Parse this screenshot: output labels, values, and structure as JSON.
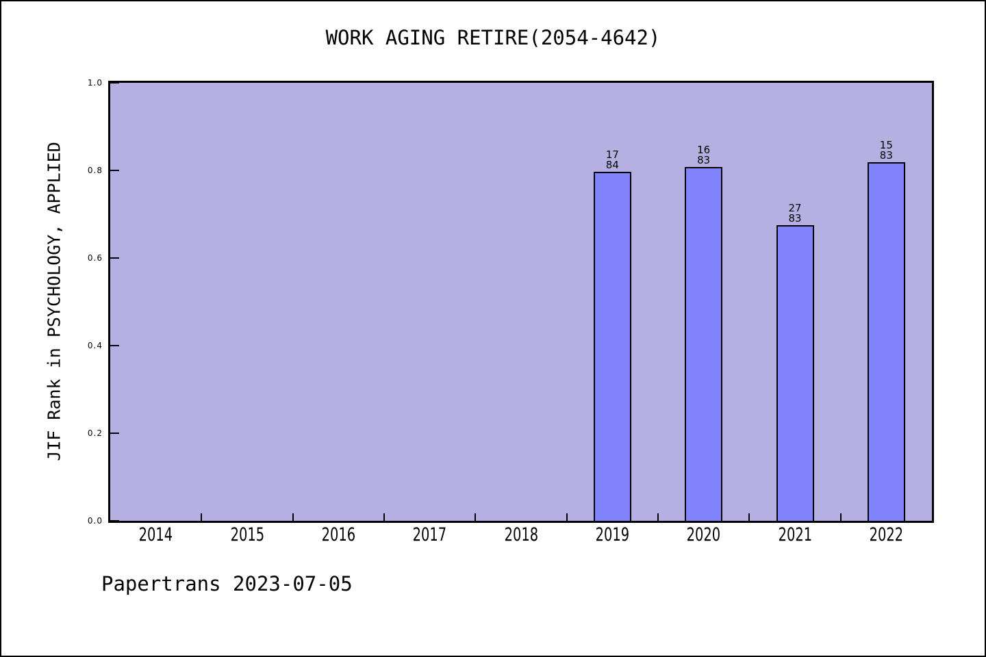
{
  "page": {
    "footer": "Papertrans 2023-07-05"
  },
  "chart_data": {
    "type": "bar",
    "title": "WORK AGING RETIRE(2054-4642)",
    "xlabel": "",
    "ylabel": "JIF Rank in PSYCHOLOGY, APPLIED",
    "categories": [
      "2014",
      "2015",
      "2016",
      "2017",
      "2018",
      "2019",
      "2020",
      "2021",
      "2022"
    ],
    "values": [
      null,
      null,
      null,
      null,
      null,
      0.7976,
      0.8072,
      0.6747,
      0.8193
    ],
    "bars": [
      {
        "year": "2019",
        "rank": "17",
        "total": "84",
        "value": 0.7976
      },
      {
        "year": "2020",
        "rank": "16",
        "total": "83",
        "value": 0.8072
      },
      {
        "year": "2021",
        "rank": "27",
        "total": "83",
        "value": 0.6747
      },
      {
        "year": "2022",
        "rank": "15",
        "total": "83",
        "value": 0.8193
      }
    ],
    "ylim": [
      0.0,
      1.0
    ],
    "yticks": [
      "0.0",
      "0.2",
      "0.4",
      "0.6",
      "0.8",
      "1.0"
    ],
    "grid": false,
    "legend": null,
    "colors": {
      "plot_background": "#b5b0e1",
      "bar_fill": "#8184fc",
      "bar_border": "#000000",
      "text": "#000000"
    }
  }
}
